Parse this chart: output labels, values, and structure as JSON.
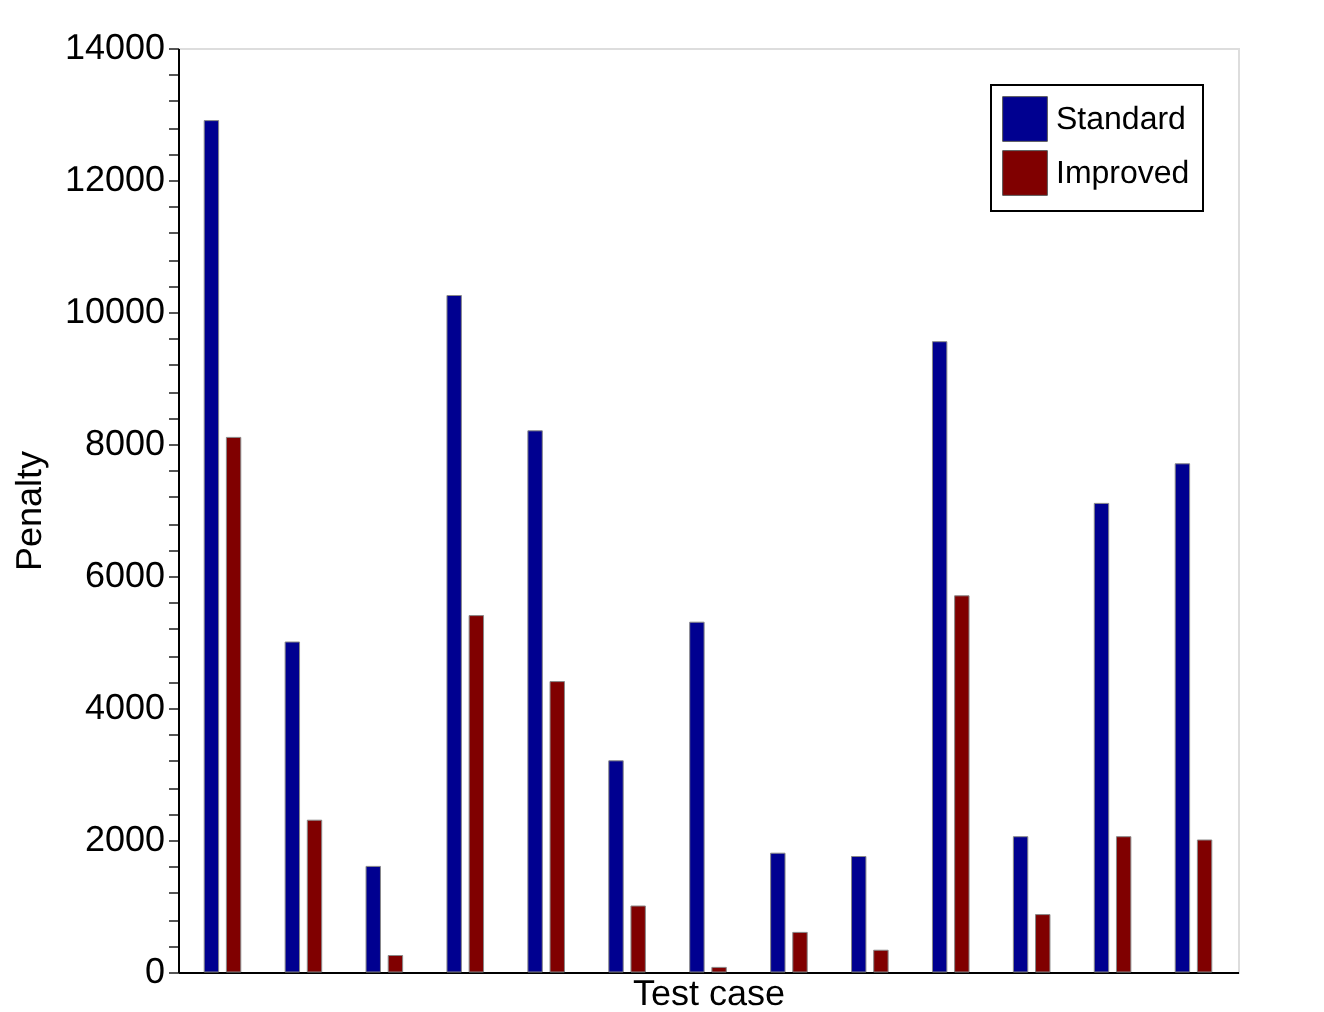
{
  "chart_data": {
    "type": "bar",
    "xlabel": "Test case",
    "ylabel": "Penalty",
    "categories": [
      null,
      null,
      null,
      null,
      null,
      null,
      null,
      null,
      null,
      null,
      null,
      null,
      null
    ],
    "series": [
      {
        "name": "Standard",
        "color": "#000090",
        "values": [
          12900,
          5000,
          1600,
          10250,
          8200,
          3200,
          5300,
          1800,
          1750,
          9550,
          2050,
          7100,
          7700
        ]
      },
      {
        "name": "Improved",
        "color": "#800000",
        "values": [
          8100,
          2300,
          250,
          5400,
          4400,
          1000,
          70,
          600,
          330,
          5700,
          870,
          2050,
          2000
        ]
      }
    ],
    "ylim": [
      0,
      14000
    ],
    "yticks": [
      0,
      {
        "value": 400,
        "label": null
      },
      {
        "value": 800,
        "label": null
      },
      {
        "value": 1200,
        "label": null
      },
      {
        "value": 1600,
        "label": null
      },
      2000,
      {
        "value": 2400,
        "label": null
      },
      {
        "value": 2800,
        "label": null
      },
      {
        "value": 3200,
        "label": null
      },
      {
        "value": 3600,
        "label": null
      },
      4000,
      {
        "value": 4400,
        "label": null
      },
      {
        "value": 4800,
        "label": null
      },
      {
        "value": 5200,
        "label": null
      },
      {
        "value": 5600,
        "label": null
      },
      6000,
      {
        "value": 6400,
        "label": null
      },
      {
        "value": 6800,
        "label": null
      },
      {
        "value": 7200,
        "label": null
      },
      {
        "value": 7600,
        "label": null
      },
      8000,
      {
        "value": 8400,
        "label": null
      },
      {
        "value": 8800,
        "label": null
      },
      {
        "value": 9200,
        "label": null
      },
      {
        "value": 9600,
        "label": null
      },
      10000,
      {
        "value": 10400,
        "label": null
      },
      {
        "value": 10800,
        "label": null
      },
      {
        "value": 11200,
        "label": null
      },
      {
        "value": 11600,
        "label": null
      },
      12000,
      {
        "value": 12400,
        "label": null
      },
      {
        "value": 12800,
        "label": null
      },
      {
        "value": 13200,
        "label": null
      },
      {
        "value": 13600,
        "label": null
      },
      14000
    ],
    "legend": "top right",
    "grid": false,
    "tick_labels": "y"
  }
}
